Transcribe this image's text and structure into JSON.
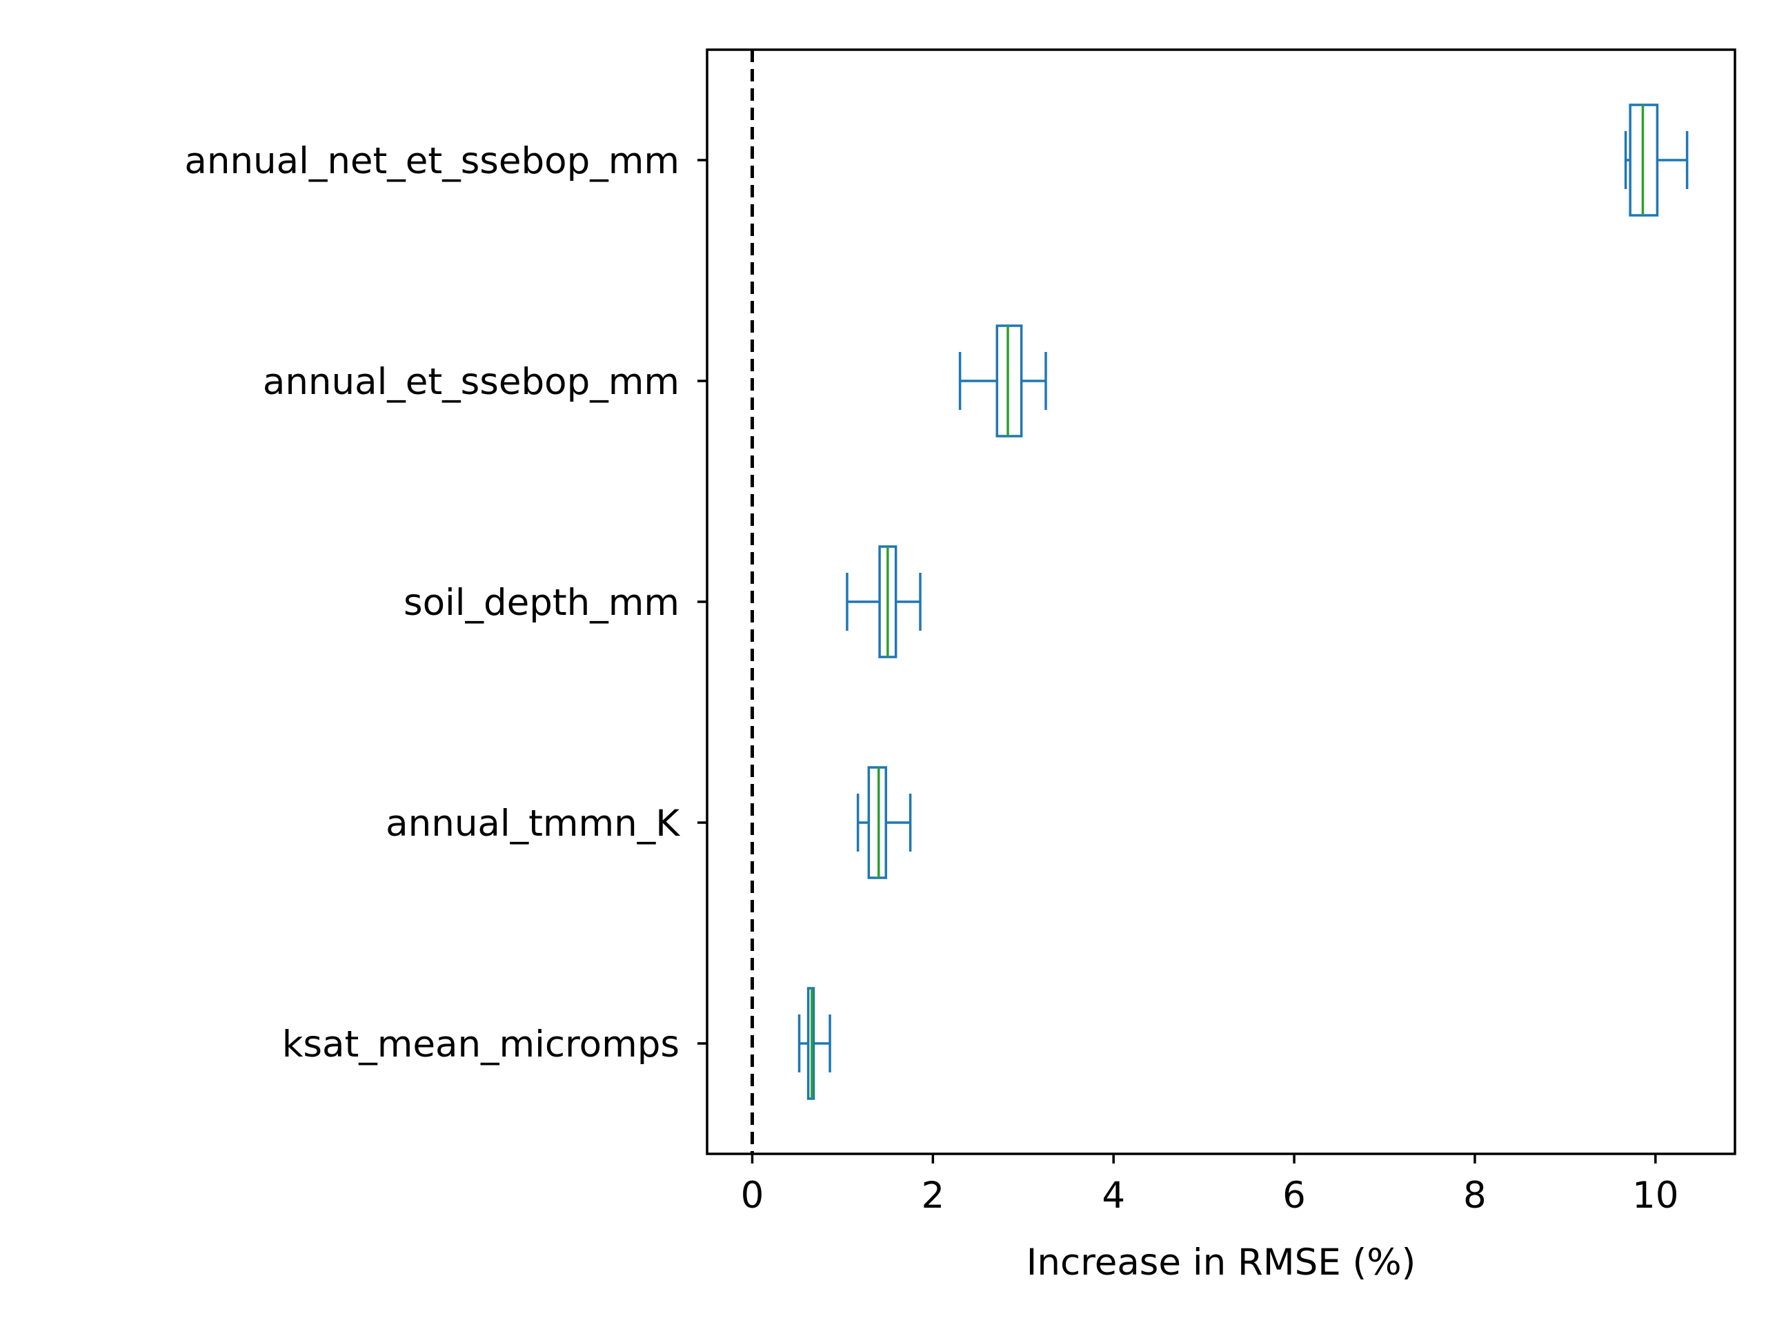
{
  "chart_data": {
    "type": "boxplot",
    "orientation": "horizontal",
    "title": "",
    "xlabel": "Increase in RMSE (%)",
    "ylabel": "",
    "xlim": [
      -0.5,
      10.88
    ],
    "xticks": [
      0,
      2,
      4,
      6,
      8,
      10
    ],
    "reference_line": {
      "x": 0,
      "style": "dashed",
      "color": "#000000"
    },
    "grid": false,
    "legend": "none",
    "colors": {
      "box": "#1f77b4",
      "median": "#2ca02c",
      "axis": "#000000"
    },
    "categories": [
      {
        "label": "annual_net_et_ssebop_mm",
        "whisker_low": 9.67,
        "q1": 9.72,
        "median": 9.86,
        "q3": 10.02,
        "whisker_high": 10.35
      },
      {
        "label": "annual_et_ssebop_mm",
        "whisker_low": 2.3,
        "q1": 2.71,
        "median": 2.83,
        "q3": 2.98,
        "whisker_high": 3.25
      },
      {
        "label": "soil_depth_mm",
        "whisker_low": 1.05,
        "q1": 1.41,
        "median": 1.5,
        "q3": 1.59,
        "whisker_high": 1.86
      },
      {
        "label": "annual_tmmn_K",
        "whisker_low": 1.17,
        "q1": 1.29,
        "median": 1.4,
        "q3": 1.48,
        "whisker_high": 1.75
      },
      {
        "label": "ksat_mean_micromps",
        "whisker_low": 0.52,
        "q1": 0.62,
        "median": 0.66,
        "q3": 0.68,
        "whisker_high": 0.86
      }
    ]
  }
}
